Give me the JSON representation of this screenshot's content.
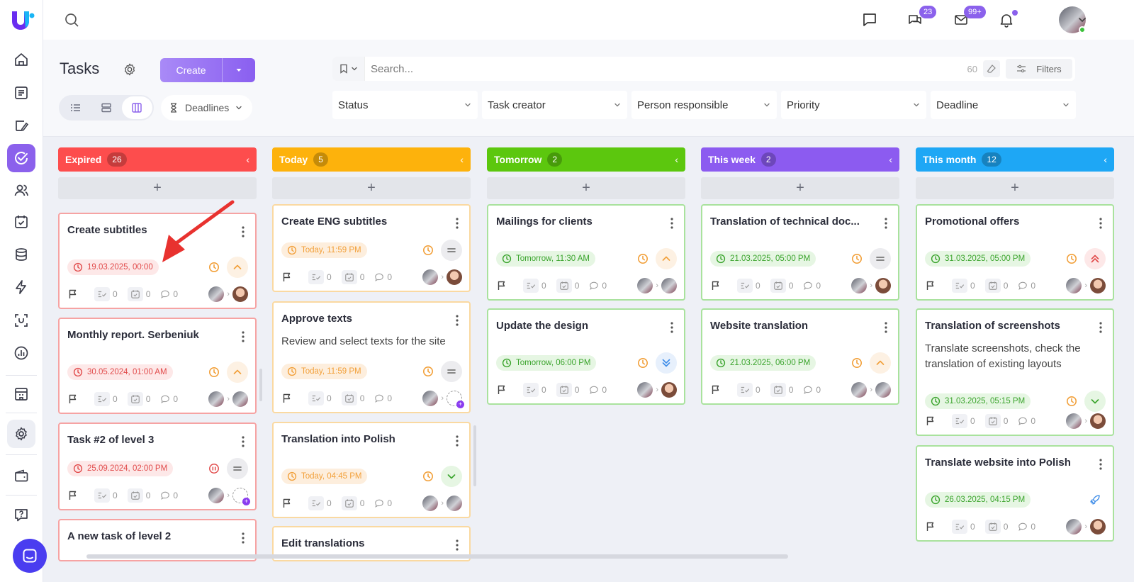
{
  "page": {
    "title": "Tasks"
  },
  "toolbar": {
    "create_label": "Create",
    "deadlines_label": "Deadlines"
  },
  "search": {
    "placeholder": "Search...",
    "count": "60",
    "filters_label": "Filters"
  },
  "filters": [
    "Status",
    "Task creator",
    "Person responsible",
    "Priority",
    "Deadline"
  ],
  "badges": {
    "chats": "23",
    "mail": "99+"
  },
  "colors": {
    "accent": "#8b61ec",
    "expired": "#fd4d4d",
    "today": "#fdb20c",
    "tomorrow": "#5cc70e",
    "this_week": "#8c5bf0",
    "this_month": "#1ea7f5"
  },
  "columns": [
    {
      "title": "Expired",
      "count": "26",
      "cards": [
        {
          "title": "Create subtitles",
          "deadline": "19.03.2025, 00:00",
          "checklist": "0",
          "subtasks": "0",
          "comments": "0"
        },
        {
          "title": "Monthly report. Serbeniuk",
          "deadline": "30.05.2024, 01:00 AM",
          "checklist": "0",
          "subtasks": "0",
          "comments": "0"
        },
        {
          "title": "Task #2 of level 3",
          "deadline": "25.09.2024, 02:00 PM",
          "checklist": "0",
          "subtasks": "0",
          "comments": "0"
        },
        {
          "title": "A new task of level 2"
        }
      ]
    },
    {
      "title": "Today",
      "count": "5",
      "cards": [
        {
          "title": "Create ENG subtitles",
          "deadline": "Today, 11:59 PM",
          "checklist": "0",
          "subtasks": "0",
          "comments": "0"
        },
        {
          "title": "Approve texts",
          "description": "Review and select texts for the site",
          "deadline": "Today, 11:59 PM",
          "checklist": "0",
          "subtasks": "0",
          "comments": "0"
        },
        {
          "title": "Translation into Polish",
          "deadline": "Today, 04:45 PM",
          "checklist": "0",
          "subtasks": "0",
          "comments": "0"
        },
        {
          "title": "Edit translations"
        }
      ]
    },
    {
      "title": "Tomorrow",
      "count": "2",
      "cards": [
        {
          "title": "Mailings for clients",
          "deadline": "Tomorrow, 11:30 AM",
          "checklist": "0",
          "subtasks": "0",
          "comments": "0"
        },
        {
          "title": "Update the design",
          "deadline": "Tomorrow, 06:00 PM",
          "checklist": "0",
          "subtasks": "0",
          "comments": "0"
        }
      ]
    },
    {
      "title": "This week",
      "count": "2",
      "cards": [
        {
          "title": "Translation of technical doc...",
          "deadline": "21.03.2025, 05:00 PM",
          "checklist": "0",
          "subtasks": "0",
          "comments": "0"
        },
        {
          "title": "Website translation",
          "deadline": "21.03.2025, 06:00 PM",
          "checklist": "0",
          "subtasks": "0",
          "comments": "0"
        }
      ]
    },
    {
      "title": "This month",
      "count": "12",
      "cards": [
        {
          "title": "Promotional offers",
          "deadline": "31.03.2025, 05:00 PM",
          "checklist": "0",
          "subtasks": "0",
          "comments": "0"
        },
        {
          "title": "Translation of screenshots",
          "description": "Translate screenshots, check the translation of existing layouts",
          "deadline": "31.03.2025, 05:15 PM",
          "checklist": "0",
          "subtasks": "0",
          "comments": "0"
        },
        {
          "title": "Translate website into Polish",
          "deadline": "26.03.2025, 04:15 PM",
          "checklist": "0",
          "subtasks": "0",
          "comments": "0"
        }
      ]
    }
  ]
}
